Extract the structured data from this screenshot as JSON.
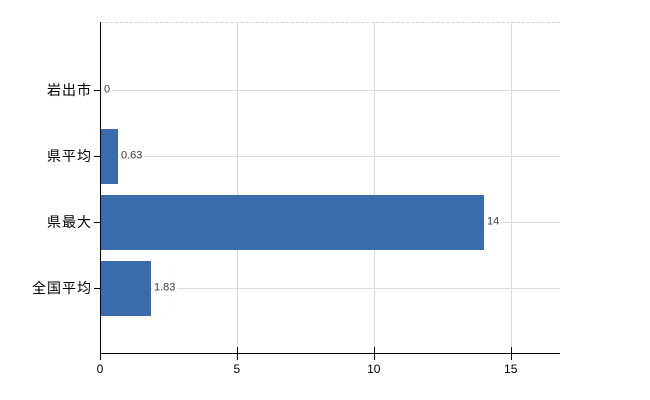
{
  "chart_data": {
    "type": "bar",
    "orientation": "horizontal",
    "title": "",
    "xlabel": "",
    "ylabel": "",
    "categories": [
      "岩出市",
      "県平均",
      "県最大",
      "全国平均"
    ],
    "values": [
      0,
      0.63,
      14,
      1.83
    ],
    "value_labels": [
      "0",
      "0.63",
      "14",
      "1.83"
    ],
    "xlim": [
      0,
      16.8
    ],
    "x_ticks": [
      0,
      5,
      10,
      15
    ],
    "x_tick_labels": [
      "0",
      "5",
      "10",
      "15"
    ],
    "grid": true,
    "legend": false,
    "bar_color": "#3a6cad",
    "vertical_gridline_color": "#d9d9d9",
    "horizontal_gridline_color": "#dcdfd9",
    "axis_color": "#000000",
    "category_label_color": "#000000",
    "value_label_color": "#3d3d3d",
    "background_color": "#ffffff"
  }
}
